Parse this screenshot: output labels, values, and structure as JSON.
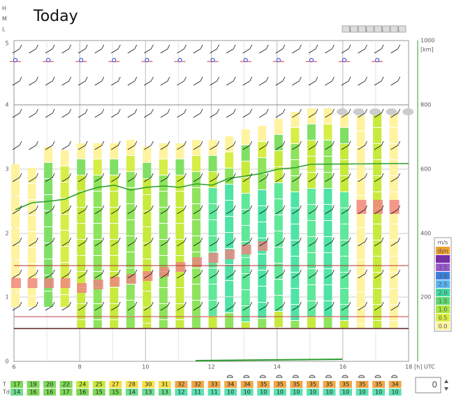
{
  "header": {
    "title": "Today",
    "levels": [
      "H",
      "M",
      "L"
    ],
    "pages": [
      "1",
      "1",
      "1",
      "1"
    ]
  },
  "axes": {
    "left": [
      "0",
      "1",
      "2",
      "3",
      "4",
      "5"
    ],
    "right": [
      "1000",
      "[km]",
      "800",
      "600",
      "400",
      "200"
    ],
    "x": [
      "6",
      "8",
      "10",
      "12",
      "14",
      "16",
      "18"
    ],
    "x_unit": "[h] UTC"
  },
  "legend": {
    "title": "m/s",
    "items": [
      "dyn",
      "4.0",
      "3.5",
      "3.0",
      "2.5",
      "2.0",
      "1.5",
      "1.0",
      "0.5",
      "0.0"
    ]
  },
  "table": {
    "rows": [
      {
        "label": "T",
        "values": [
          17,
          19,
          20,
          22,
          24,
          25,
          27,
          28,
          30,
          31,
          32,
          32,
          33,
          34,
          34,
          35,
          35,
          35,
          35,
          35,
          35,
          35,
          35,
          34
        ]
      },
      {
        "label": "Td",
        "values": [
          14,
          16,
          16,
          17,
          16,
          15,
          15,
          14,
          13,
          13,
          12,
          11,
          11,
          10,
          10,
          10,
          10,
          10,
          10,
          10,
          10,
          10,
          10,
          10
        ]
      }
    ]
  },
  "counter": "0"
}
